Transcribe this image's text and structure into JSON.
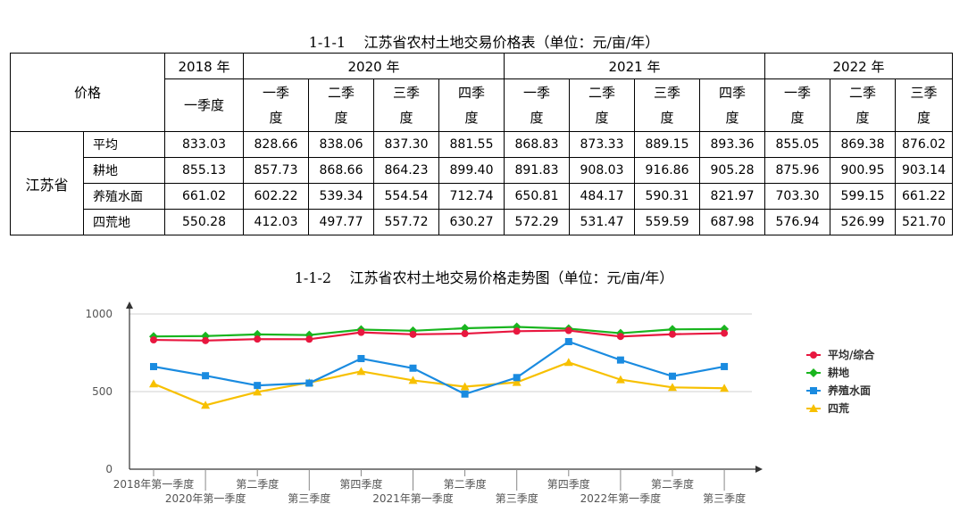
{
  "table": {
    "caption": "1-1-1    江苏省农村土地交易价格表（单位：元/亩/年）",
    "header_label": "价格",
    "years": [
      {
        "label": "2018 年",
        "span": 1
      },
      {
        "label": "2020 年",
        "span": 4
      },
      {
        "label": "2021 年",
        "span": 4
      },
      {
        "label": "2022 年",
        "span": 3
      }
    ],
    "quarters": [
      "一季度",
      "一季\n度",
      "二季\n度",
      "三季\n度",
      "四季\n度",
      "一季\n度",
      "二季\n度",
      "三季\n度",
      "四季\n度",
      "一季\n度",
      "二季\n度",
      "三季\n度"
    ],
    "province": "江苏省",
    "rows": [
      {
        "label": "平均",
        "values": [
          "833.03",
          "828.66",
          "838.06",
          "837.30",
          "881.55",
          "868.83",
          "873.33",
          "889.15",
          "893.36",
          "855.05",
          "869.38",
          "876.02"
        ]
      },
      {
        "label": "耕地",
        "values": [
          "855.13",
          "857.73",
          "868.66",
          "864.23",
          "899.40",
          "891.83",
          "908.03",
          "916.86",
          "905.28",
          "875.96",
          "900.95",
          "903.14"
        ]
      },
      {
        "label": "养殖水面",
        "values": [
          "661.02",
          "602.22",
          "539.34",
          "554.54",
          "712.74",
          "650.81",
          "484.17",
          "590.31",
          "821.97",
          "703.30",
          "599.15",
          "661.22"
        ]
      },
      {
        "label": "四荒地",
        "values": [
          "550.28",
          "412.03",
          "497.77",
          "557.72",
          "630.27",
          "572.29",
          "531.47",
          "559.59",
          "687.98",
          "576.94",
          "526.99",
          "521.70"
        ]
      }
    ]
  },
  "chart_data": {
    "type": "line",
    "title": "1-1-2    江苏省农村土地交易价格走势图（单位：元/亩/年）",
    "categories": [
      "2018年第一季度",
      "2020年第一季度",
      "第二季度",
      "第三季度",
      "第四季度",
      "2021年第一季度",
      "第二季度",
      "第三季度",
      "第四季度",
      "2022年第一季度",
      "第二季度",
      "第三季度"
    ],
    "yticks": [
      "0",
      "500",
      "1000"
    ],
    "ylim": [
      0,
      1000
    ],
    "grid": true,
    "legend_position": "right",
    "series": [
      {
        "name": "平均/综合",
        "color": "#e8173f",
        "marker": "circle",
        "values": [
          833.03,
          828.66,
          838.06,
          837.3,
          881.55,
          868.83,
          873.33,
          889.15,
          893.36,
          855.05,
          869.38,
          876.02
        ]
      },
      {
        "name": "耕地",
        "color": "#19b51f",
        "marker": "diamond",
        "values": [
          855.13,
          857.73,
          868.66,
          864.23,
          899.4,
          891.83,
          908.03,
          916.86,
          905.28,
          875.96,
          900.95,
          903.14
        ]
      },
      {
        "name": "养殖水面",
        "color": "#1a8be0",
        "marker": "square",
        "values": [
          661.02,
          602.22,
          539.34,
          554.54,
          712.74,
          650.81,
          484.17,
          590.31,
          821.97,
          703.3,
          599.15,
          661.22
        ]
      },
      {
        "name": "四荒",
        "color": "#f7c000",
        "marker": "triangle",
        "values": [
          550.28,
          412.03,
          497.77,
          557.72,
          630.27,
          572.29,
          531.47,
          559.59,
          687.98,
          576.94,
          526.99,
          521.7
        ]
      }
    ]
  }
}
